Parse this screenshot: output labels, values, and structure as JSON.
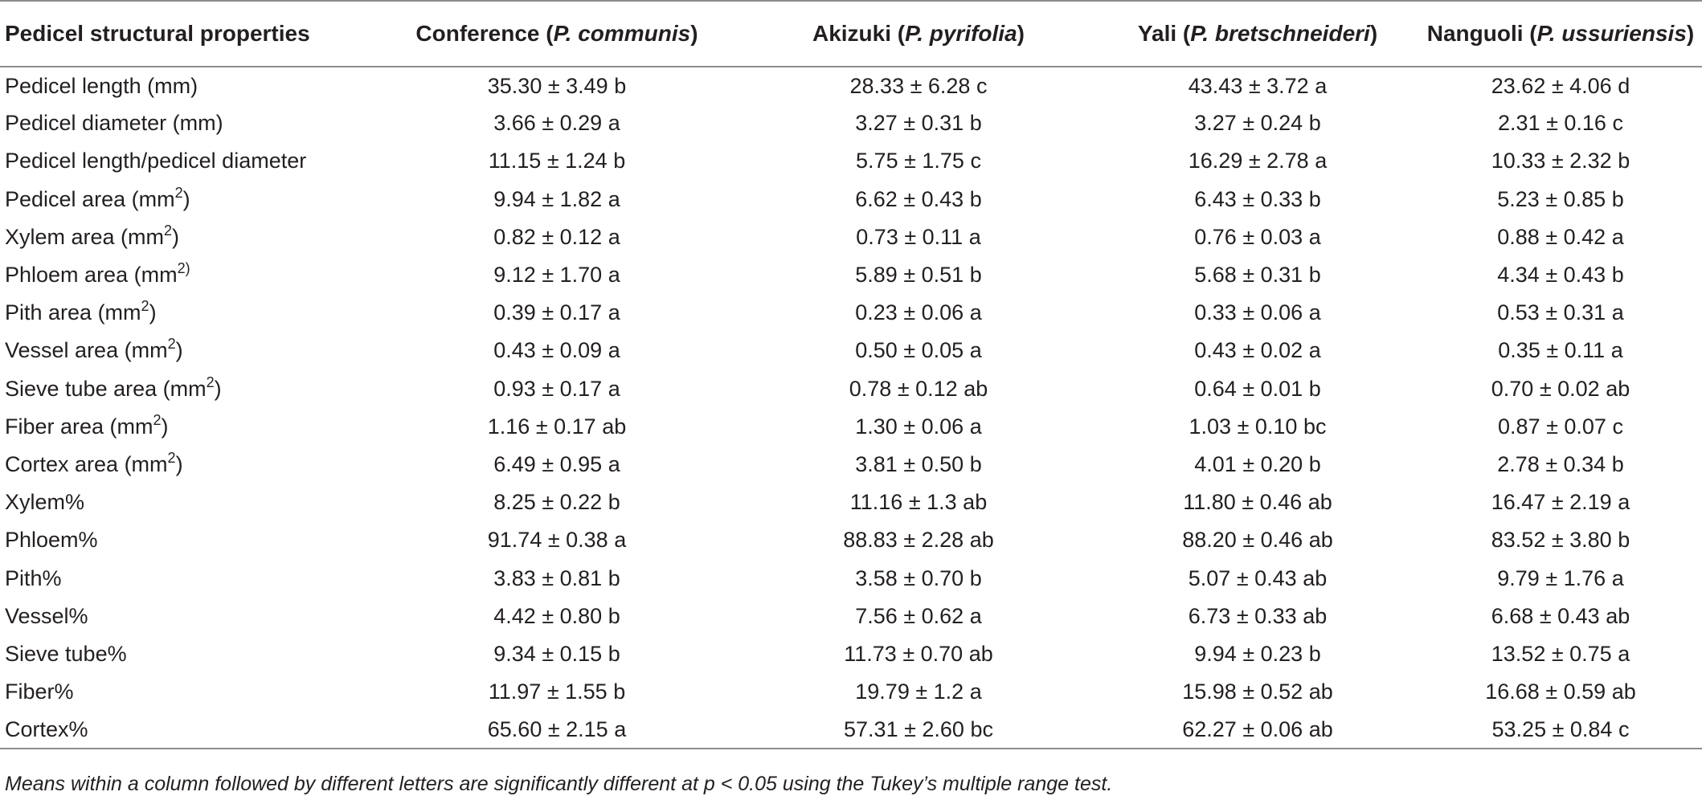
{
  "table": {
    "header": {
      "col0": "Pedicel structural properties",
      "cultivars": [
        {
          "name": "Conference",
          "species": "P. communis"
        },
        {
          "name": "Akizuki",
          "species": "P. pyrifolia"
        },
        {
          "name": "Yali",
          "species": "P. bretschneideri"
        },
        {
          "name": "Nanguoli",
          "species": "P. ussuriensis"
        }
      ]
    },
    "rows": [
      {
        "label": "Pedicel length (mm)",
        "unit_sup": "",
        "label_suffix": "",
        "values": [
          "35.30 ± 3.49 b",
          "28.33 ± 6.28 c",
          "43.43 ± 3.72 a",
          "23.62 ± 4.06 d"
        ]
      },
      {
        "label": "Pedicel diameter (mm)",
        "unit_sup": "",
        "label_suffix": "",
        "values": [
          "3.66 ± 0.29 a",
          "3.27 ± 0.31 b",
          "3.27 ± 0.24 b",
          "2.31 ± 0.16 c"
        ]
      },
      {
        "label": "Pedicel length/pedicel diameter",
        "unit_sup": "",
        "label_suffix": "",
        "values": [
          "11.15 ± 1.24 b",
          "5.75 ± 1.75 c",
          "16.29 ± 2.78 a",
          "10.33 ± 2.32 b"
        ]
      },
      {
        "label": "Pedicel area (mm",
        "unit_sup": "2",
        "label_suffix": ")",
        "values": [
          "9.94 ± 1.82 a",
          "6.62 ± 0.43 b",
          "6.43 ± 0.33 b",
          "5.23 ± 0.85 b"
        ]
      },
      {
        "label": "Xylem area (mm",
        "unit_sup": "2",
        "label_suffix": ")",
        "values": [
          "0.82 ± 0.12 a",
          "0.73 ± 0.11 a",
          "0.76 ± 0.03 a",
          "0.88 ± 0.42 a"
        ]
      },
      {
        "label": "Phloem area (mm",
        "unit_sup": "2)",
        "label_suffix": "",
        "values": [
          "9.12 ± 1.70 a",
          "5.89 ± 0.51 b",
          "5.68 ± 0.31 b",
          "4.34 ± 0.43 b"
        ]
      },
      {
        "label": "Pith area (mm",
        "unit_sup": "2",
        "label_suffix": ")",
        "values": [
          "0.39 ± 0.17 a",
          "0.23 ± 0.06 a",
          "0.33 ± 0.06 a",
          "0.53 ± 0.31 a"
        ]
      },
      {
        "label": "Vessel area (mm",
        "unit_sup": "2",
        "label_suffix": ")",
        "values": [
          "0.43 ± 0.09 a",
          "0.50 ± 0.05 a",
          "0.43 ± 0.02 a",
          "0.35 ± 0.11 a"
        ]
      },
      {
        "label": "Sieve tube area (mm",
        "unit_sup": "2",
        "label_suffix": ")",
        "values": [
          "0.93 ± 0.17 a",
          "0.78 ± 0.12 ab",
          "0.64 ± 0.01 b",
          "0.70 ± 0.02 ab"
        ]
      },
      {
        "label": "Fiber area (mm",
        "unit_sup": "2",
        "label_suffix": ")",
        "values": [
          "1.16 ± 0.17 ab",
          "1.30 ± 0.06 a",
          "1.03 ± 0.10 bc",
          "0.87 ± 0.07 c"
        ]
      },
      {
        "label": "Cortex area (mm",
        "unit_sup": "2",
        "label_suffix": ")",
        "values": [
          "6.49 ± 0.95 a",
          "3.81 ± 0.50 b",
          "4.01 ± 0.20 b",
          "2.78 ± 0.34 b"
        ]
      },
      {
        "label": "Xylem%",
        "unit_sup": "",
        "label_suffix": "",
        "values": [
          "8.25 ± 0.22 b",
          "11.16 ± 1.3 ab",
          "11.80 ± 0.46 ab",
          "16.47 ± 2.19 a"
        ]
      },
      {
        "label": "Phloem%",
        "unit_sup": "",
        "label_suffix": "",
        "values": [
          "91.74 ± 0.38 a",
          "88.83 ± 2.28 ab",
          "88.20 ± 0.46 ab",
          "83.52 ± 3.80 b"
        ]
      },
      {
        "label": "Pith%",
        "unit_sup": "",
        "label_suffix": "",
        "values": [
          "3.83 ± 0.81 b",
          "3.58 ± 0.70 b",
          "5.07 ± 0.43 ab",
          "9.79 ± 1.76 a"
        ]
      },
      {
        "label": "Vessel%",
        "unit_sup": "",
        "label_suffix": "",
        "values": [
          "4.42 ± 0.80 b",
          "7.56 ± 0.62 a",
          "6.73 ± 0.33 ab",
          "6.68 ± 0.43 ab"
        ]
      },
      {
        "label": "Sieve tube%",
        "unit_sup": "",
        "label_suffix": "",
        "values": [
          "9.34 ± 0.15 b",
          "11.73 ± 0.70 ab",
          "9.94 ± 0.23 b",
          "13.52 ± 0.75 a"
        ]
      },
      {
        "label": "Fiber%",
        "unit_sup": "",
        "label_suffix": "",
        "values": [
          "11.97 ± 1.55 b",
          "19.79 ± 1.2 a",
          "15.98 ± 0.52 ab",
          "16.68 ± 0.59 ab"
        ]
      },
      {
        "label": "Cortex%",
        "unit_sup": "",
        "label_suffix": "",
        "values": [
          "65.60 ± 2.15 a",
          "57.31 ± 2.60 bc",
          "62.27 ± 0.06 ab",
          "53.25 ± 0.84 c"
        ]
      }
    ],
    "footnote": "Means within a column followed by different letters are significantly different at p < 0.05 using the Tukey’s multiple range test."
  }
}
